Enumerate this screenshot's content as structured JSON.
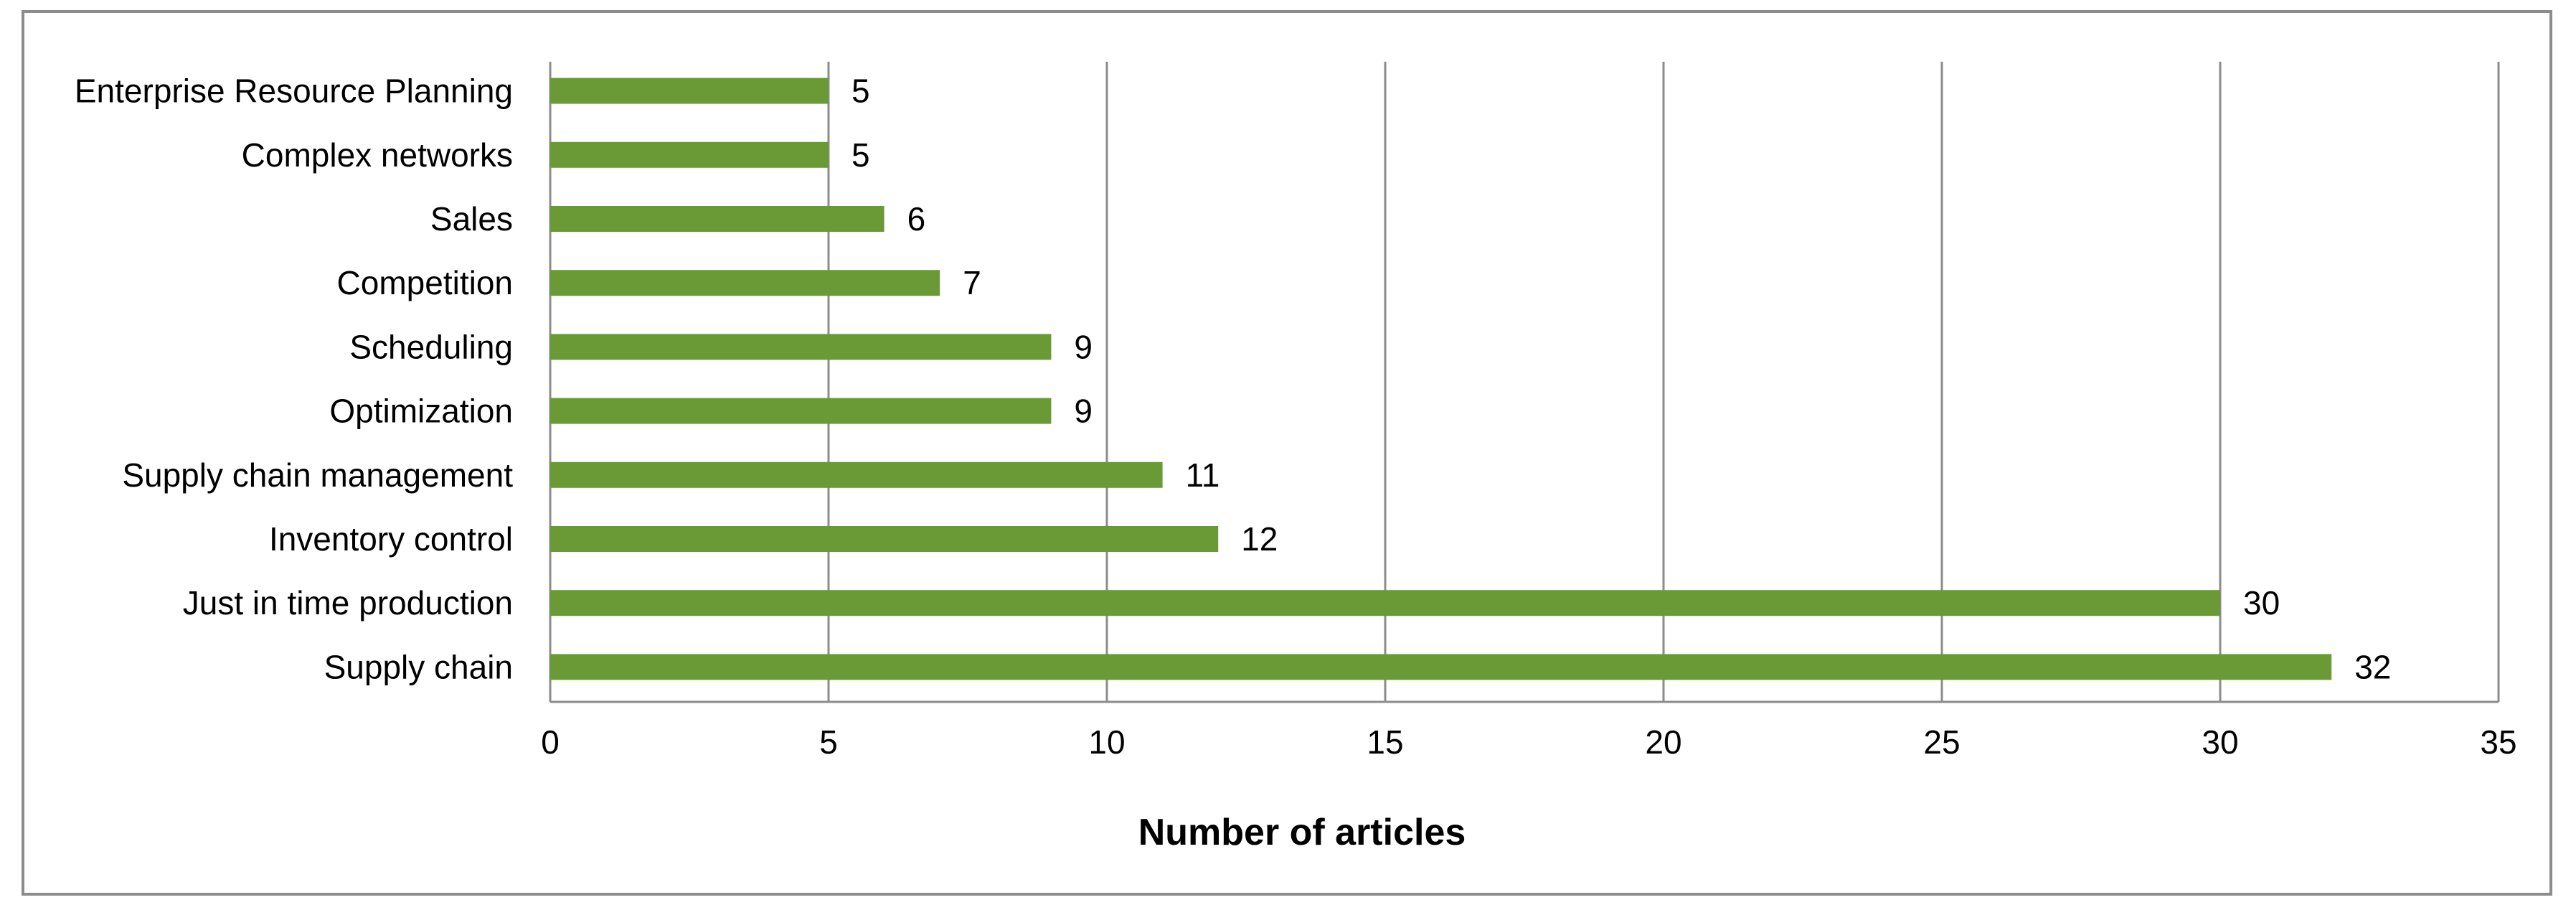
{
  "chart_data": {
    "type": "bar",
    "orientation": "horizontal",
    "categories": [
      "Enterprise Resource Planning",
      "Complex networks",
      "Sales",
      "Competition",
      "Scheduling",
      "Optimization",
      "Supply chain management",
      "Inventory control",
      "Just in time production",
      "Supply chain"
    ],
    "values": [
      5,
      5,
      6,
      7,
      9,
      9,
      11,
      12,
      30,
      32
    ],
    "xlabel": "Number of articles",
    "ylabel": "",
    "xlim": [
      0,
      35
    ],
    "xticks": [
      "0",
      "5",
      "10",
      "15",
      "20",
      "25",
      "30",
      "35"
    ],
    "grid": "vertical",
    "legend": "none",
    "bar_color": "#6a9a35",
    "gridline_color": "#8c8c8c",
    "frame_color": "#8c8c8c",
    "data_labels": true
  }
}
